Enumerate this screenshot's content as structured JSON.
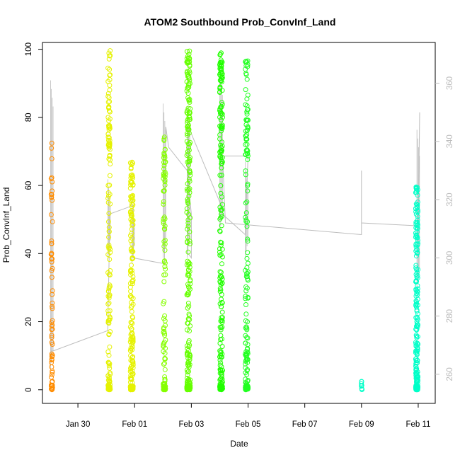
{
  "chart_data": {
    "type": "scatter",
    "title": "ATOM2 Southbound Prob_ConvInf_Land",
    "xlabel": "Date",
    "ylabel": "Prob_ConvInf_Land",
    "x_ticks": [
      "Jan 30",
      "Feb 01",
      "Feb 03",
      "Feb 05",
      "Feb 07",
      "Feb 09",
      "Feb 11"
    ],
    "x_tick_days": [
      30,
      32,
      34,
      36,
      38,
      40,
      42
    ],
    "xlim_days": [
      28.75,
      42.6
    ],
    "ylim": [
      -4,
      102
    ],
    "y_ticks": [
      0,
      20,
      40,
      60,
      80,
      100
    ],
    "y2lim": [
      250,
      374
    ],
    "y2_ticks": [
      260,
      280,
      300,
      320,
      340,
      360
    ],
    "grid": false,
    "bursts": [
      {
        "day": 29.08,
        "width": 0.05,
        "color": "#ff8c00",
        "n": 70,
        "lo": 0,
        "hi": 73
      },
      {
        "day": 31.1,
        "width": 0.08,
        "color": "#e5f200",
        "n": 170,
        "lo": 0,
        "hi": 100
      },
      {
        "day": 31.9,
        "width": 0.1,
        "color": "#e5f200",
        "n": 200,
        "lo": 0,
        "hi": 67
      },
      {
        "day": 33.05,
        "width": 0.08,
        "color": "#86ff00",
        "n": 120,
        "lo": 0,
        "hi": 75
      },
      {
        "day": 33.9,
        "width": 0.12,
        "color": "#66ff00",
        "n": 260,
        "lo": 0,
        "hi": 100
      },
      {
        "day": 35.05,
        "width": 0.1,
        "color": "#22ff00",
        "n": 230,
        "lo": 0,
        "hi": 100
      },
      {
        "day": 35.95,
        "width": 0.1,
        "color": "#22ff22",
        "n": 170,
        "lo": 0,
        "hi": 97
      },
      {
        "day": 40.0,
        "width": 0.04,
        "color": "#00ffc8",
        "n": 8,
        "lo": 0,
        "hi": 2.5
      },
      {
        "day": 41.95,
        "width": 0.08,
        "color": "#00ffc8",
        "n": 220,
        "lo": 0,
        "hi": 60
      }
    ],
    "altitude_series": {
      "name": "",
      "color": "#bdbdbd",
      "points": [
        [
          29.05,
          268
        ],
        [
          29.12,
          268
        ],
        [
          31.05,
          275
        ],
        [
          31.1,
          300
        ],
        [
          31.1,
          315
        ],
        [
          31.95,
          318
        ],
        [
          31.95,
          300
        ],
        [
          33.05,
          298
        ],
        [
          33.1,
          345
        ],
        [
          33.2,
          338
        ],
        [
          33.85,
          330
        ],
        [
          34.0,
          315
        ],
        [
          34.0,
          300
        ],
        [
          33.85,
          302
        ],
        [
          33.9,
          345
        ],
        [
          35.05,
          318
        ],
        [
          35.1,
          315
        ],
        [
          35.9,
          308
        ],
        [
          36.0,
          335
        ],
        [
          35.1,
          335
        ],
        [
          35.2,
          312
        ],
        [
          40.0,
          308
        ],
        [
          40.0,
          330
        ],
        [
          40.0,
          312
        ],
        [
          42.0,
          311
        ],
        [
          42.05,
          350
        ]
      ],
      "vertical_bands": [
        {
          "day": 29.08,
          "lo": 262,
          "hi": 361
        },
        {
          "day": 31.1,
          "lo": 300,
          "hi": 327
        },
        {
          "day": 31.95,
          "lo": 298,
          "hi": 320
        },
        {
          "day": 33.05,
          "lo": 300,
          "hi": 353
        },
        {
          "day": 33.9,
          "lo": 300,
          "hi": 352
        },
        {
          "day": 35.05,
          "lo": 309,
          "hi": 365
        },
        {
          "day": 35.95,
          "lo": 300,
          "hi": 333
        },
        {
          "day": 42.0,
          "lo": 290,
          "hi": 344
        }
      ]
    }
  }
}
